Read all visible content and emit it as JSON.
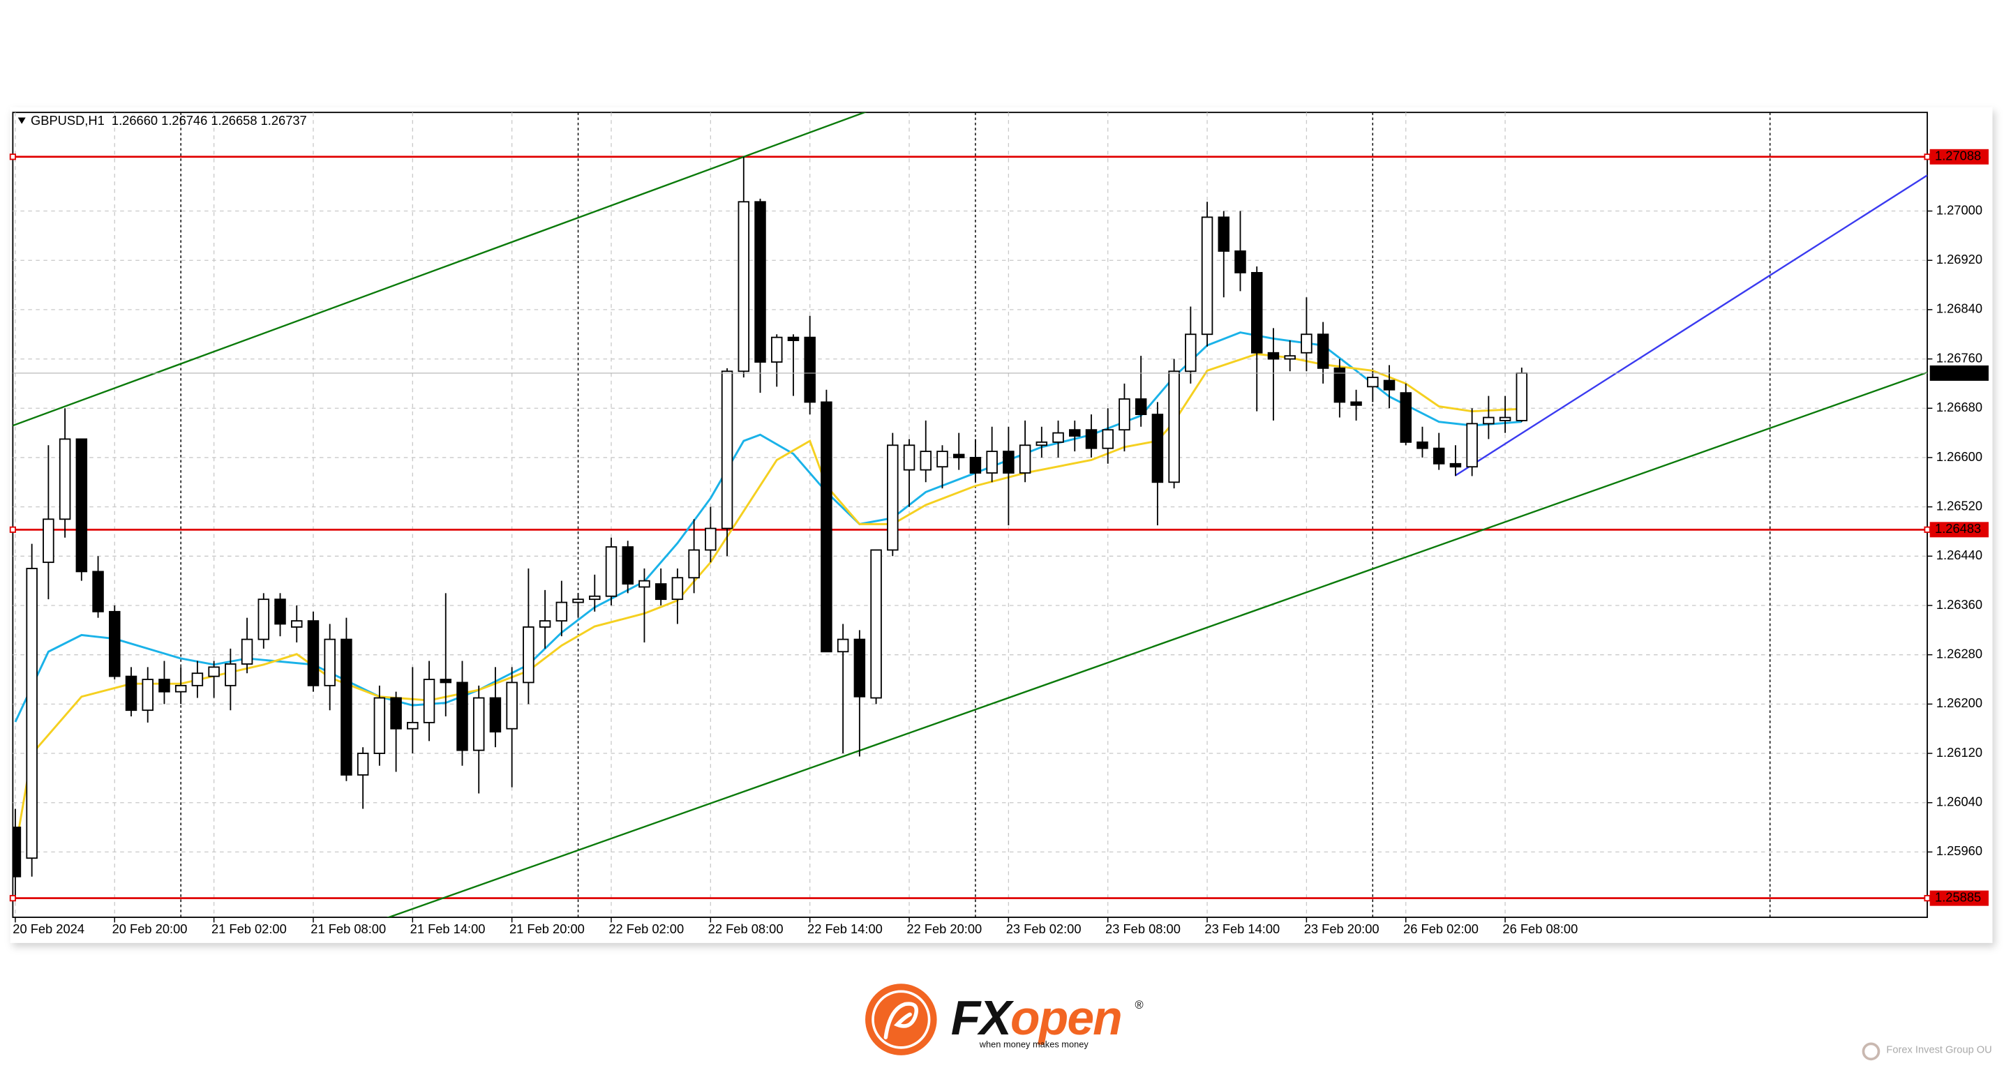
{
  "chart_data": {
    "type": "candlestick",
    "title": "GBPUSD,H1  1.26660 1.26746 1.26658 1.26737",
    "up_color": "#ffffff",
    "down_color": "#000000",
    "open": [
      1.26,
      1.2595,
      1.2643,
      1.265,
      1.2663,
      1.26415,
      1.2635,
      1.26245,
      1.2619,
      1.2624,
      1.2622,
      1.2623,
      1.26245,
      1.2623,
      1.26265,
      1.26305,
      1.2637,
      1.26325,
      1.26335,
      1.2623,
      1.26305,
      1.26085,
      1.2612,
      1.2621,
      1.2616,
      1.2617,
      1.2624,
      1.26235,
      1.26125,
      1.2621,
      1.2616,
      1.26235,
      1.26325,
      1.26335,
      1.26365,
      1.2637,
      1.26375,
      1.26455,
      1.2639,
      1.26395,
      1.2637,
      1.26405,
      1.2645,
      1.26485,
      1.2674,
      1.27015,
      1.26755,
      1.26795,
      1.26795,
      1.2669,
      1.26285,
      1.26305,
      1.2621,
      1.2645,
      1.2658,
      1.2658,
      1.26585,
      1.26605,
      1.266,
      1.26575,
      1.2661,
      1.26575,
      1.2662,
      1.26625,
      1.26645,
      1.26645,
      1.26615,
      1.26645,
      1.26695,
      1.2667,
      1.2656,
      1.2674,
      1.268,
      1.2699,
      1.26935,
      1.269,
      1.2677,
      1.2676,
      1.2677,
      1.268,
      1.26745,
      1.2669,
      1.26715,
      1.26725,
      1.26705,
      1.26625,
      1.26615,
      1.2659,
      1.26585,
      1.26655,
      1.2666,
      1.2666
    ],
    "high": [
      1.2603,
      1.2646,
      1.2662,
      1.2668,
      1.2663,
      1.2644,
      1.2636,
      1.2626,
      1.2626,
      1.2627,
      1.2626,
      1.2627,
      1.2627,
      1.2629,
      1.2634,
      1.2638,
      1.2638,
      1.2636,
      1.2635,
      1.2633,
      1.2634,
      1.2613,
      1.2623,
      1.2622,
      1.2626,
      1.2627,
      1.2638,
      1.2627,
      1.2623,
      1.2626,
      1.2626,
      1.2642,
      1.26385,
      1.264,
      1.2638,
      1.2641,
      1.2647,
      1.26465,
      1.2642,
      1.2642,
      1.2642,
      1.265,
      1.2652,
      1.26745,
      1.27088,
      1.2702,
      1.268,
      1.268,
      1.2683,
      1.2671,
      1.2633,
      1.2632,
      1.2645,
      1.2664,
      1.2663,
      1.2666,
      1.2662,
      1.2664,
      1.2663,
      1.2665,
      1.2665,
      1.2666,
      1.2665,
      1.2666,
      1.2666,
      1.2667,
      1.2668,
      1.2672,
      1.26765,
      1.2669,
      1.2676,
      1.26845,
      1.27015,
      1.27,
      1.27,
      1.2691,
      1.2681,
      1.2679,
      1.2686,
      1.2682,
      1.2676,
      1.2671,
      1.2674,
      1.2675,
      1.2672,
      1.2665,
      1.2664,
      1.2662,
      1.2668,
      1.267,
      1.267,
      1.26746
    ],
    "low": [
      1.2588,
      1.2592,
      1.2637,
      1.2647,
      1.264,
      1.2634,
      1.2624,
      1.2618,
      1.2617,
      1.262,
      1.262,
      1.2621,
      1.2621,
      1.2619,
      1.2625,
      1.2629,
      1.2631,
      1.263,
      1.2622,
      1.2619,
      1.26075,
      1.2603,
      1.261,
      1.2609,
      1.2612,
      1.2614,
      1.2618,
      1.261,
      1.26055,
      1.2613,
      1.26065,
      1.262,
      1.2629,
      1.2631,
      1.2634,
      1.2635,
      1.2636,
      1.2638,
      1.263,
      1.2636,
      1.2633,
      1.2638,
      1.2643,
      1.2644,
      1.2673,
      1.26705,
      1.26715,
      1.267,
      1.2667,
      1.26285,
      1.2612,
      1.26115,
      1.262,
      1.2644,
      1.2652,
      1.2656,
      1.2655,
      1.2658,
      1.2656,
      1.2656,
      1.2649,
      1.2656,
      1.266,
      1.266,
      1.2661,
      1.266,
      1.2659,
      1.2661,
      1.2665,
      1.2649,
      1.2655,
      1.2672,
      1.2678,
      1.2686,
      1.2687,
      1.26675,
      1.2666,
      1.2674,
      1.2674,
      1.2672,
      1.26665,
      1.2666,
      1.2669,
      1.2668,
      1.2662,
      1.266,
      1.2658,
      1.2657,
      1.2657,
      1.2663,
      1.2664,
      1.26658
    ],
    "close": [
      1.2592,
      1.2642,
      1.265,
      1.2663,
      1.26415,
      1.2635,
      1.26245,
      1.2619,
      1.2624,
      1.2622,
      1.2623,
      1.2625,
      1.2626,
      1.26265,
      1.26305,
      1.2637,
      1.2633,
      1.26335,
      1.2623,
      1.26305,
      1.26085,
      1.2612,
      1.2621,
      1.2616,
      1.2617,
      1.2624,
      1.26235,
      1.26125,
      1.2621,
      1.26155,
      1.26235,
      1.26325,
      1.26335,
      1.26365,
      1.2637,
      1.26375,
      1.26455,
      1.26395,
      1.264,
      1.2637,
      1.26405,
      1.2645,
      1.26485,
      1.2674,
      1.27015,
      1.26755,
      1.26795,
      1.2679,
      1.2669,
      1.26285,
      1.26305,
      1.26212,
      1.2645,
      1.2662,
      1.2662,
      1.2661,
      1.2661,
      1.266,
      1.26575,
      1.2661,
      1.26575,
      1.2662,
      1.26625,
      1.2664,
      1.26635,
      1.26615,
      1.26645,
      1.26695,
      1.2667,
      1.2656,
      1.2674,
      1.268,
      1.2699,
      1.26935,
      1.269,
      1.2677,
      1.2676,
      1.26765,
      1.268,
      1.26745,
      1.2669,
      1.26685,
      1.2673,
      1.2671,
      1.26625,
      1.26615,
      1.2659,
      1.26585,
      1.26655,
      1.26665,
      1.26665,
      1.26737
    ],
    "xlim": [
      -0.15,
      115.5
    ],
    "xticks": [
      {
        "value": 0,
        "label": "20 Feb 2024"
      },
      {
        "value": 6,
        "label": "20 Feb 20:00"
      },
      {
        "value": 12,
        "label": "21 Feb 02:00"
      },
      {
        "value": 18,
        "label": "21 Feb 08:00"
      },
      {
        "value": 24,
        "label": "21 Feb 14:00"
      },
      {
        "value": 30,
        "label": "21 Feb 20:00"
      },
      {
        "value": 36,
        "label": "22 Feb 02:00"
      },
      {
        "value": 42,
        "label": "22 Feb 08:00"
      },
      {
        "value": 48,
        "label": "22 Feb 14:00"
      },
      {
        "value": 54,
        "label": "22 Feb 20:00"
      },
      {
        "value": 60,
        "label": "23 Feb 02:00"
      },
      {
        "value": 66,
        "label": "23 Feb 08:00"
      },
      {
        "value": 72,
        "label": "23 Feb 14:00"
      },
      {
        "value": 78,
        "label": "23 Feb 20:00"
      },
      {
        "value": 84,
        "label": "26 Feb 02:00"
      },
      {
        "value": 90,
        "label": "26 Feb 08:00"
      }
    ],
    "period_separators": [
      10,
      34,
      58,
      82,
      106
    ],
    "ylim": [
      1.25854,
      1.2716
    ],
    "yticks": [
      {
        "value": 1.27,
        "label": "1.27000"
      },
      {
        "value": 1.2692,
        "label": "1.26920"
      },
      {
        "value": 1.2684,
        "label": "1.26840"
      },
      {
        "value": 1.2676,
        "label": "1.26760"
      },
      {
        "value": 1.2668,
        "label": "1.26680"
      },
      {
        "value": 1.266,
        "label": "1.26600"
      },
      {
        "value": 1.2652,
        "label": "1.26520"
      },
      {
        "value": 1.2644,
        "label": "1.26440"
      },
      {
        "value": 1.2636,
        "label": "1.26360"
      },
      {
        "value": 1.2628,
        "label": "1.26280"
      },
      {
        "value": 1.262,
        "label": "1.26200"
      },
      {
        "value": 1.2612,
        "label": "1.26120"
      },
      {
        "value": 1.2604,
        "label": "1.26040"
      },
      {
        "value": 1.2596,
        "label": "1.25960"
      }
    ],
    "grid": true,
    "indicators": [
      {
        "color": "#1ab2e8",
        "x": [
          0,
          2,
          4,
          6,
          10,
          12,
          14,
          18,
          22,
          24,
          26,
          28,
          31,
          33,
          35,
          38,
          40,
          42,
          44,
          45,
          47,
          49,
          51,
          53,
          55,
          58,
          60,
          62,
          65,
          68,
          70,
          72,
          74,
          76,
          79,
          81,
          83,
          86,
          88,
          91
        ],
        "values": [
          1.26171,
          1.26285,
          1.26312,
          1.26306,
          1.26274,
          1.26264,
          1.26274,
          1.26264,
          1.26212,
          1.26198,
          1.26202,
          1.26223,
          1.26264,
          1.26316,
          1.26357,
          1.26399,
          1.26461,
          1.26534,
          1.26627,
          1.26637,
          1.26606,
          1.26544,
          1.26492,
          1.26502,
          1.26544,
          1.26575,
          1.26596,
          1.26617,
          1.26637,
          1.26668,
          1.26731,
          1.26782,
          1.26803,
          1.26793,
          1.26782,
          1.26741,
          1.26699,
          1.26658,
          1.26652,
          1.26658
        ]
      },
      {
        "color": "#f5d020",
        "x": [
          0,
          1,
          4,
          7,
          10,
          15,
          17,
          19,
          22,
          25,
          28,
          31,
          33,
          35,
          38,
          40,
          42,
          44,
          46,
          48,
          49,
          51,
          53,
          55,
          58,
          61,
          65,
          67,
          69,
          70,
          72,
          75,
          77,
          79,
          82,
          84,
          86,
          88,
          91
        ],
        "values": [
          1.25964,
          1.26119,
          1.26212,
          1.26233,
          1.26233,
          1.26264,
          1.26281,
          1.26243,
          1.26212,
          1.26206,
          1.26223,
          1.26254,
          1.26295,
          1.26326,
          1.26347,
          1.26368,
          1.2643,
          1.26513,
          1.26596,
          1.26627,
          1.26554,
          1.26492,
          1.26492,
          1.26523,
          1.26554,
          1.26575,
          1.26596,
          1.26617,
          1.26627,
          1.26658,
          1.26741,
          1.26768,
          1.26762,
          1.26751,
          1.26741,
          1.2672,
          1.26683,
          1.26675,
          1.26679
        ]
      }
    ],
    "trendlines": [
      {
        "color": "#0a7a0a",
        "extend": true,
        "x": [
          3,
          44
        ],
        "values": [
          1.26683,
          1.27088
        ]
      },
      {
        "color": "#0a7a0a",
        "extend": true,
        "x": [
          50,
          89
        ],
        "values": [
          1.26115,
          1.26486
        ]
      },
      {
        "color": "#3a3af0",
        "extend": false,
        "x": [
          87,
          115.5
        ],
        "values": [
          1.26571,
          1.27058
        ]
      }
    ],
    "levels": [
      {
        "value": 1.27088,
        "color": "#e00000"
      },
      {
        "value": 1.26483,
        "color": "#e00000"
      },
      {
        "value": 1.25885,
        "color": "#e00000"
      }
    ]
  },
  "logo": {
    "prefix": "FX",
    "suffix": "open",
    "mark": "®",
    "tagline": "when money makes money"
  },
  "credit": "Forex Invest Group OU"
}
